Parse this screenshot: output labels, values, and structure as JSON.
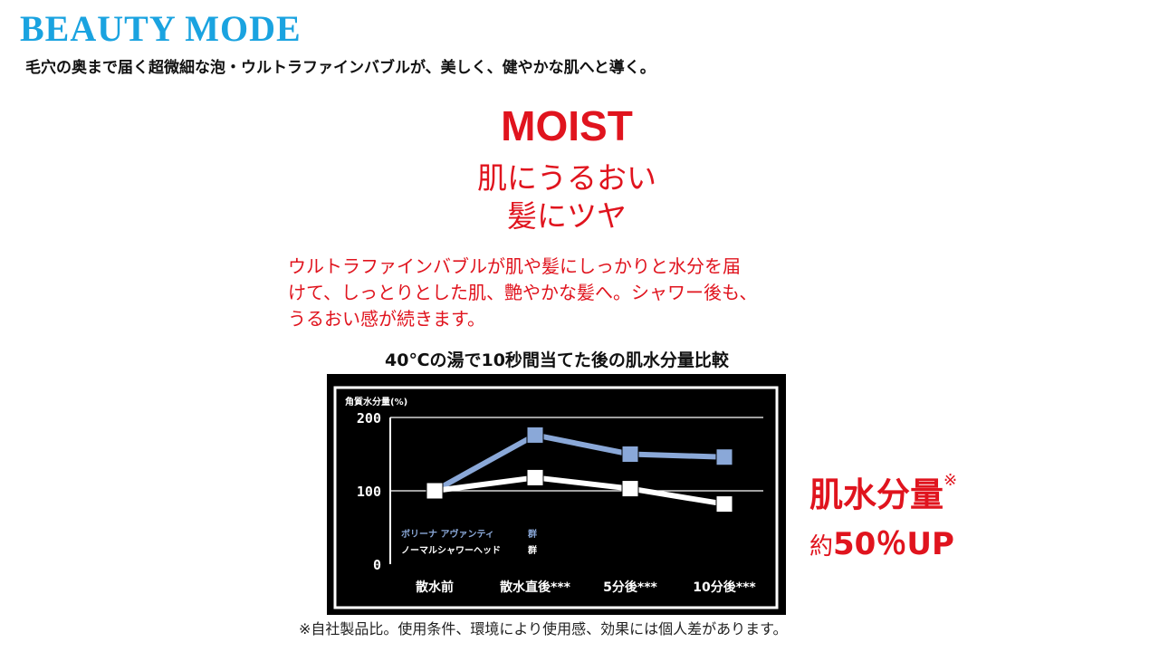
{
  "header": {
    "brand": "BEAUTY MODE",
    "tagline": "毛穴の奥まで届く超微細な泡・ウルトラファインバブルが、美しく、健やかな肌へと導く。"
  },
  "feature": {
    "title": "MOIST",
    "subtitle_line1": "肌にうるおい",
    "subtitle_line2": "髪にツヤ",
    "description_lines": [
      "ウルトラファインバブルが肌や髪にしっかりと水分を届",
      "けて、しっとりとした肌、艶やかな髪へ。シャワー後も、",
      "うるおい感が続きます。"
    ]
  },
  "chart_title": "40℃の湯で10秒間当てた後の肌水分量比較",
  "result": {
    "label": "肌水分量",
    "mark": "※",
    "prefix": "約",
    "value": "50％UP"
  },
  "footnote": "※自社製品比。使用条件、環境により使用感、効果には個人差があります。",
  "chart_data": {
    "type": "line",
    "ylabel": "角質水分量(%)",
    "ylim": [
      0,
      200
    ],
    "yticks": [
      0,
      100,
      200
    ],
    "ytick_labels": [
      "0",
      "100",
      "200"
    ],
    "categories": [
      "散水前",
      "散水直後***",
      "5分後***",
      "10分後***"
    ],
    "grid": true,
    "legend_position": "lower-left",
    "background": "#000000",
    "series": [
      {
        "name": "ボリーナ アヴァンティ",
        "legend_suffix": "群",
        "color": "#8aa8d8",
        "marker": "square",
        "values": [
          100,
          176,
          150,
          146
        ]
      },
      {
        "name": "ノーマルシャワーヘッド",
        "legend_suffix": "群",
        "color": "#ffffff",
        "marker": "square",
        "values": [
          100,
          118,
          103,
          82
        ]
      }
    ]
  }
}
